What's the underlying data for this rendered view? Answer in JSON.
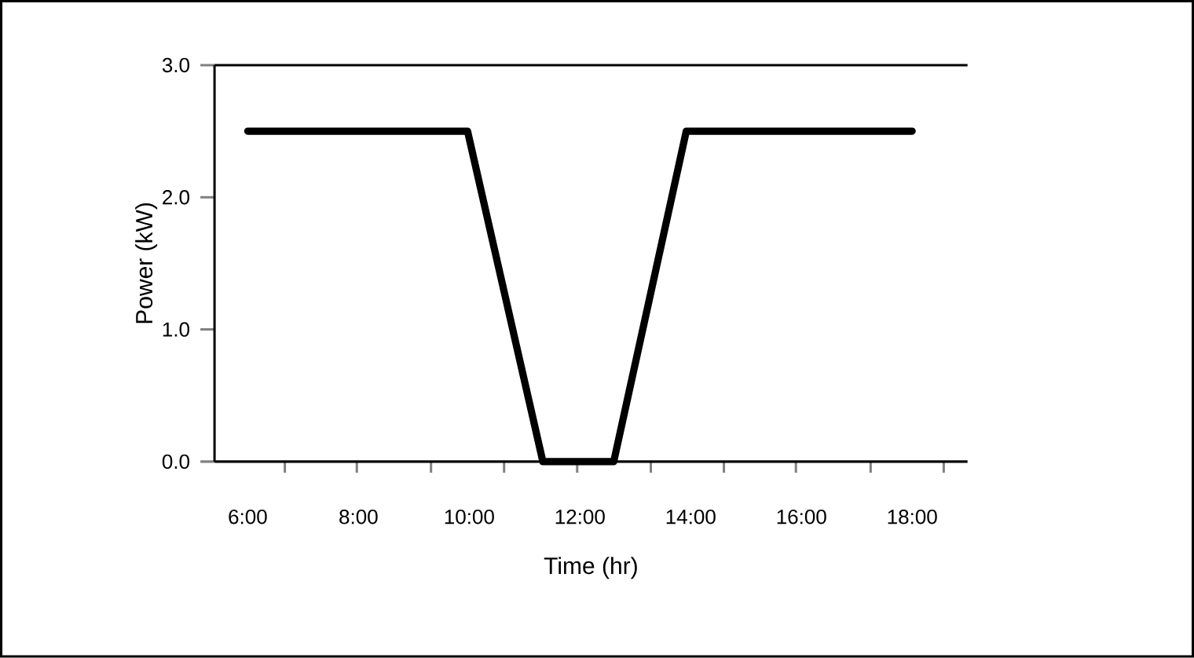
{
  "chart_data": {
    "type": "line",
    "xlabel": "Time (hr)",
    "ylabel": "Power (kW)",
    "x": [
      6.0,
      9.97,
      11.33,
      12.61,
      13.92,
      18.0
    ],
    "series": [
      {
        "color": "#000000",
        "values": [
          2.5,
          2.5,
          0,
          0,
          2.5,
          2.5
        ]
      }
    ],
    "xlim": [
      5.4,
      19.0
    ],
    "ylim": [
      0,
      3
    ],
    "xticks": [
      {
        "value": 6,
        "label": "6:00"
      },
      {
        "value": 8,
        "label": "8:00"
      },
      {
        "value": 10,
        "label": "10:00"
      },
      {
        "value": 12,
        "label": "12:00"
      },
      {
        "value": 14,
        "label": "14:00"
      },
      {
        "value": 16,
        "label": "16:00"
      },
      {
        "value": 18,
        "label": "18:00"
      },
      {
        "value": 6.67,
        "label": null
      },
      {
        "value": 7.97,
        "label": null
      },
      {
        "value": 9.31,
        "label": null
      },
      {
        "value": 10.63,
        "label": null
      },
      {
        "value": 11.95,
        "label": null
      },
      {
        "value": 13.28,
        "label": null
      },
      {
        "value": 14.6,
        "label": null
      },
      {
        "value": 15.9,
        "label": null
      },
      {
        "value": 17.25,
        "label": null
      },
      {
        "value": 18.57,
        "label": null
      }
    ],
    "yticks": [
      {
        "value": 0,
        "label": "0.0"
      },
      {
        "value": 1,
        "label": "1.0"
      },
      {
        "value": 2,
        "label": "2.0"
      },
      {
        "value": 3,
        "label": "3.0"
      }
    ],
    "grid": false,
    "marker": "none",
    "line_style": "solid"
  }
}
